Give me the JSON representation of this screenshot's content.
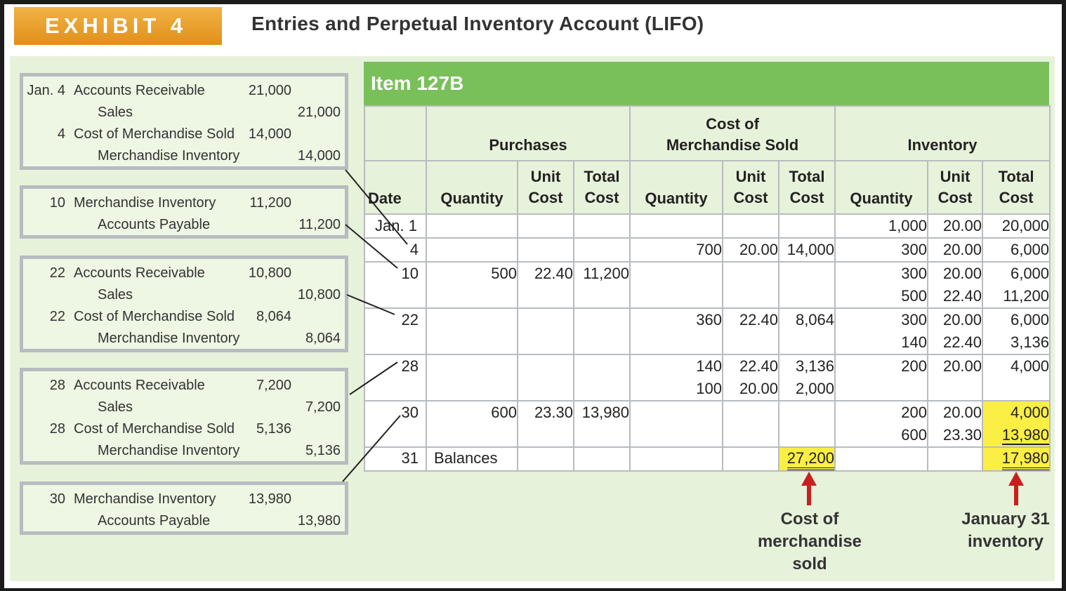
{
  "exhibit": {
    "tab_label": "EXHIBIT 4",
    "title": "Entries and Perpetual Inventory Account (LIFO)"
  },
  "journal": [
    {
      "lines": [
        {
          "date": "Jan. 4",
          "account": "Accounts Receivable",
          "debit": "21,000",
          "credit": ""
        },
        {
          "date": "",
          "account": "Sales",
          "debit": "",
          "credit": "21,000"
        },
        {
          "date": "4",
          "account": "Cost of Merchandise Sold",
          "debit": "14,000",
          "credit": ""
        },
        {
          "date": "",
          "account": "Merchandise Inventory",
          "debit": "",
          "credit": "14,000"
        }
      ]
    },
    {
      "lines": [
        {
          "date": "10",
          "account": "Merchandise Inventory",
          "debit": "11,200",
          "credit": ""
        },
        {
          "date": "",
          "account": "Accounts Payable",
          "debit": "",
          "credit": "11,200"
        }
      ]
    },
    {
      "lines": [
        {
          "date": "22",
          "account": "Accounts Receivable",
          "debit": "10,800",
          "credit": ""
        },
        {
          "date": "",
          "account": "Sales",
          "debit": "",
          "credit": "10,800"
        },
        {
          "date": "22",
          "account": "Cost of Merchandise Sold",
          "debit": "8,064",
          "credit": ""
        },
        {
          "date": "",
          "account": "Merchandise Inventory",
          "debit": "",
          "credit": "8,064"
        }
      ]
    },
    {
      "lines": [
        {
          "date": "28",
          "account": "Accounts Receivable",
          "debit": "7,200",
          "credit": ""
        },
        {
          "date": "",
          "account": "Sales",
          "debit": "",
          "credit": "7,200"
        },
        {
          "date": "28",
          "account": "Cost of Merchandise Sold",
          "debit": "5,136",
          "credit": ""
        },
        {
          "date": "",
          "account": "Merchandise Inventory",
          "debit": "",
          "credit": "5,136"
        }
      ]
    },
    {
      "lines": [
        {
          "date": "30",
          "account": "Merchandise Inventory",
          "debit": "13,980",
          "credit": ""
        },
        {
          "date": "",
          "account": "Accounts Payable",
          "debit": "",
          "credit": "13,980"
        }
      ]
    }
  ],
  "ledger": {
    "item": "Item 127B",
    "groups": {
      "purchases": "Purchases",
      "cogs": "Cost of\nMerchandise Sold",
      "inventory": "Inventory"
    },
    "columns": {
      "date": "Date",
      "quantity": "Quantity",
      "unit_cost": "Unit\nCost",
      "total_cost": "Total\nCost"
    },
    "rows": [
      {
        "date": "Jan. 1",
        "p_qty": "",
        "p_unit": "",
        "p_total": "",
        "c_qty": [],
        "c_unit": [],
        "c_total": [],
        "i_qty": [
          "1,000"
        ],
        "i_unit": [
          "20.00"
        ],
        "i_total": [
          "20,000"
        ]
      },
      {
        "date": "4",
        "p_qty": "",
        "p_unit": "",
        "p_total": "",
        "c_qty": [
          "700"
        ],
        "c_unit": [
          "20.00"
        ],
        "c_total": [
          "14,000"
        ],
        "i_qty": [
          "300"
        ],
        "i_unit": [
          "20.00"
        ],
        "i_total": [
          "6,000"
        ]
      },
      {
        "date": "10",
        "p_qty": "500",
        "p_unit": "22.40",
        "p_total": "11,200",
        "c_qty": [],
        "c_unit": [],
        "c_total": [],
        "i_qty": [
          "300",
          "500"
        ],
        "i_unit": [
          "20.00",
          "22.40"
        ],
        "i_total": [
          "6,000",
          "11,200"
        ]
      },
      {
        "date": "22",
        "p_qty": "",
        "p_unit": "",
        "p_total": "",
        "c_qty": [
          "360"
        ],
        "c_unit": [
          "22.40"
        ],
        "c_total": [
          "8,064"
        ],
        "i_qty": [
          "300",
          "140"
        ],
        "i_unit": [
          "20.00",
          "22.40"
        ],
        "i_total": [
          "6,000",
          "3,136"
        ]
      },
      {
        "date": "28",
        "p_qty": "",
        "p_unit": "",
        "p_total": "",
        "c_qty": [
          "140",
          "100"
        ],
        "c_unit": [
          "22.40",
          "20.00"
        ],
        "c_total": [
          "3,136",
          "2,000"
        ],
        "i_qty": [
          "200"
        ],
        "i_unit": [
          "20.00"
        ],
        "i_total": [
          "4,000"
        ]
      },
      {
        "date": "30",
        "p_qty": "600",
        "p_unit": "23.30",
        "p_total": "13,980",
        "c_qty": [],
        "c_unit": [],
        "c_total": [],
        "i_qty": [
          "200",
          "600"
        ],
        "i_unit": [
          "20.00",
          "23.30"
        ],
        "i_total": [
          "4,000",
          "13,980"
        ]
      }
    ],
    "balance": {
      "date": "31",
      "label": "Balances",
      "cogs_total": "27,200",
      "inventory_total": "17,980"
    }
  },
  "callouts": {
    "cogs": "Cost of\nmerchandise\nsold",
    "inventory": "January 31\ninventory"
  },
  "colors": {
    "tab": "#e8a030",
    "ledger_header": "#79c05a",
    "panel": "#e7f2da",
    "highlight": "#fbee45",
    "arrow": "#c8201e"
  }
}
